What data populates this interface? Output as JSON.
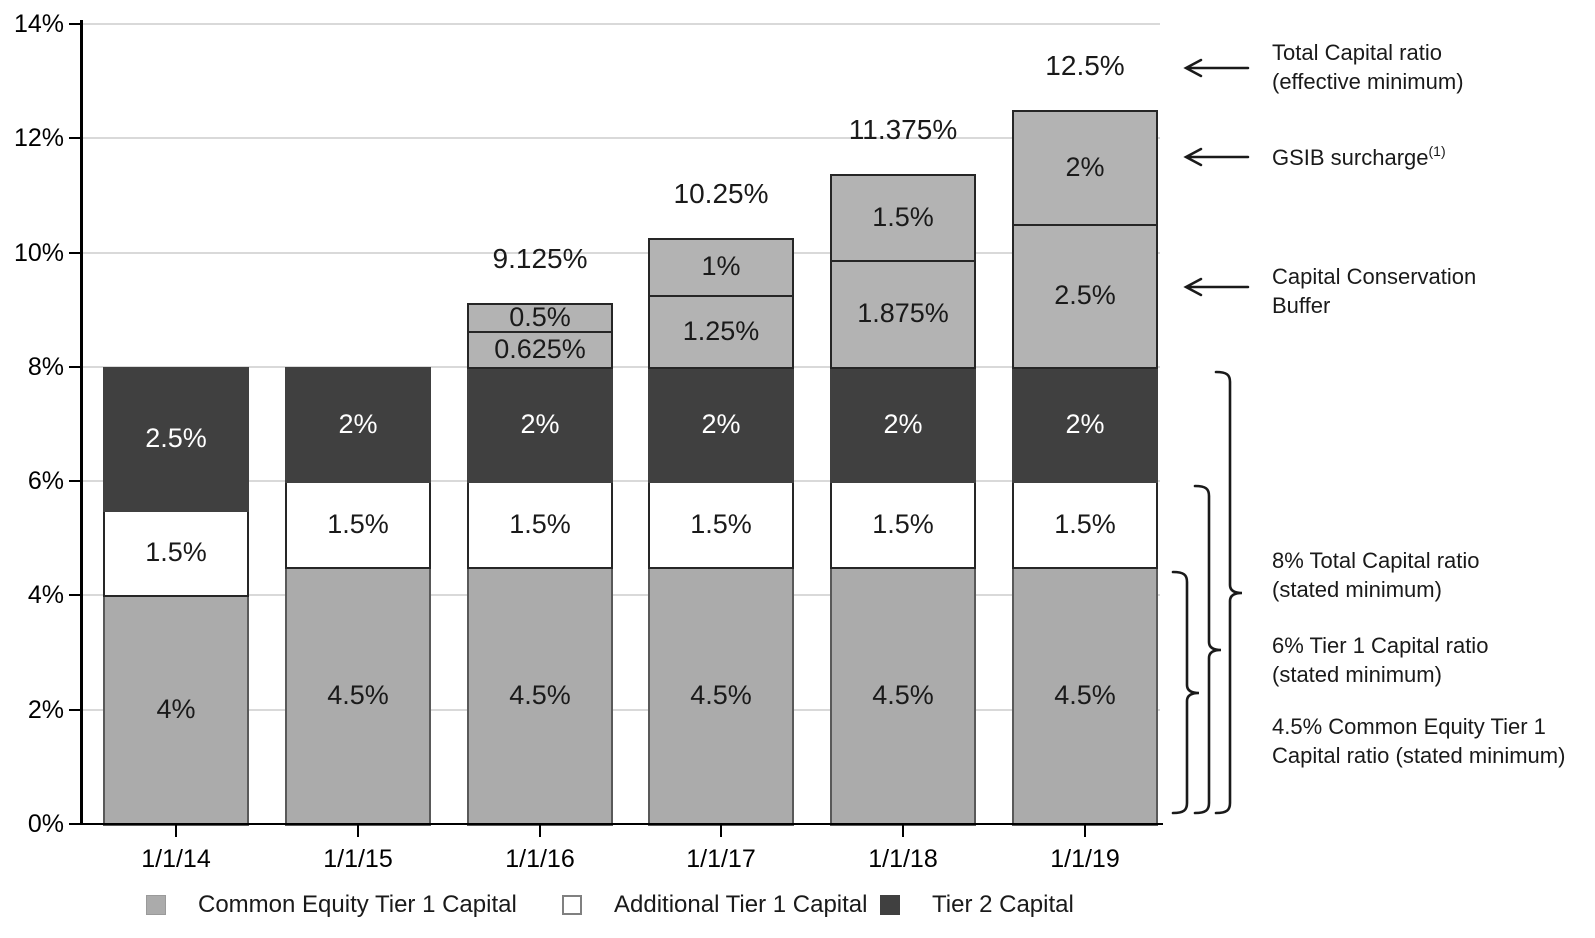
{
  "palette": {
    "cet1": "#ababab",
    "at1": "#ffffff",
    "tier2": "#404040",
    "buffer": "#b3b3b3",
    "cet1_border": "#595959",
    "dark_border": "#262626",
    "grid": "#d9d9d9",
    "axis": "#000000",
    "text_dark": "#1a1a1a",
    "text_light": "#ffffff"
  },
  "chart_data": {
    "type": "bar",
    "stacked": true,
    "title": "",
    "xlabel": "",
    "ylabel": "",
    "ylim": [
      0,
      14
    ],
    "grid": "horizontal",
    "y_tick_values": [
      0,
      2,
      4,
      6,
      8,
      10,
      12,
      14
    ],
    "y_tick_labels": [
      "0%",
      "2%",
      "4%",
      "6%",
      "8%",
      "10%",
      "12%",
      "14%"
    ],
    "categories": [
      "1/1/14",
      "1/1/15",
      "1/1/16",
      "1/1/17",
      "1/1/18",
      "1/1/19"
    ],
    "series": [
      {
        "name": "Common Equity Tier 1 Capital",
        "fill": "cet1",
        "values": [
          4,
          4.5,
          4.5,
          4.5,
          4.5,
          4.5
        ],
        "labels": [
          "4%",
          "4.5%",
          "4.5%",
          "4.5%",
          "4.5%",
          "4.5%"
        ]
      },
      {
        "name": "Additional Tier 1 Capital",
        "fill": "at1",
        "values": [
          1.5,
          1.5,
          1.5,
          1.5,
          1.5,
          1.5
        ],
        "labels": [
          "1.5%",
          "1.5%",
          "1.5%",
          "1.5%",
          "1.5%",
          "1.5%"
        ]
      },
      {
        "name": "Tier 2 Capital",
        "fill": "tier2",
        "values": [
          2.5,
          2,
          2,
          2,
          2,
          2
        ],
        "labels": [
          "2.5%",
          "2%",
          "2%",
          "2%",
          "2%",
          "2%"
        ]
      },
      {
        "name": "Capital Conservation Buffer",
        "fill": "buffer",
        "values": [
          0,
          0,
          0.625,
          1.25,
          1.875,
          2.5
        ],
        "labels": [
          "",
          "",
          "0.625%",
          "1.25%",
          "1.875%",
          "2.5%"
        ]
      },
      {
        "name": "GSIB surcharge",
        "fill": "buffer",
        "values": [
          0,
          0,
          0.5,
          1,
          1.5,
          2
        ],
        "labels": [
          "",
          "",
          "0.5%",
          "1%",
          "1.5%",
          "2%"
        ]
      }
    ],
    "totals": {
      "values": [
        8,
        8,
        9.125,
        10.25,
        11.375,
        12.5
      ],
      "labels": [
        "",
        "",
        "9.125%",
        "10.25%",
        "11.375%",
        "12.5%"
      ]
    },
    "legend": [
      {
        "label": "Common Equity Tier 1 Capital",
        "fill": "cet1"
      },
      {
        "label": "Additional Tier 1 Capital",
        "fill": "at1"
      },
      {
        "label": "Tier 2 Capital",
        "fill": "tier2"
      }
    ],
    "annotations": {
      "arrows": [
        {
          "lines": [
            "Total Capital ratio",
            "(effective minimum)"
          ],
          "superscript": ""
        },
        {
          "lines": [
            "GSIB surcharge"
          ],
          "superscript": "(1)"
        },
        {
          "lines": [
            "Capital Conservation",
            "Buffer"
          ],
          "superscript": ""
        }
      ],
      "braces": [
        {
          "from": 8,
          "to": 0,
          "lines": [
            "8% Total Capital ratio",
            "(stated minimum)"
          ]
        },
        {
          "from": 6,
          "to": 0,
          "lines": [
            "6% Tier 1 Capital ratio",
            "(stated minimum)"
          ]
        },
        {
          "from": 4.5,
          "to": 0,
          "lines": [
            "4.5% Common Equity Tier 1",
            "Capital ratio (stated minimum)"
          ]
        }
      ]
    }
  }
}
